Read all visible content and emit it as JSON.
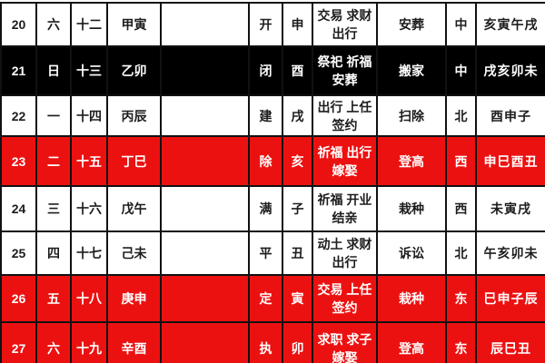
{
  "colors": {
    "row_red": "#ec1111",
    "row_dark": "#000000",
    "row_white": "#ffffff",
    "border": "#111111",
    "text_dark": "#1c1c1c",
    "text_light": "#ffffff"
  },
  "table": {
    "columns": [
      {
        "key": "day",
        "name": "day-number-cell"
      },
      {
        "key": "week",
        "name": "weekday-cell"
      },
      {
        "key": "lunar",
        "name": "lunar-date-cell"
      },
      {
        "key": "ganzhi",
        "name": "ganzhi-day-cell"
      },
      {
        "key": "festival",
        "name": "festival-cell"
      },
      {
        "key": "jianchu",
        "name": "jianchu-cell"
      },
      {
        "key": "zodiac",
        "name": "zodiac-hour-cell"
      },
      {
        "key": "yi",
        "name": "auspicious-activities-cell"
      },
      {
        "key": "activity",
        "name": "recommended-activity-cell"
      },
      {
        "key": "dir",
        "name": "lucky-direction-cell"
      },
      {
        "key": "hours",
        "name": "lucky-hours-cell"
      }
    ],
    "rows": [
      {
        "day": "20",
        "week": "六",
        "lunar": "十二",
        "ganzhi": "甲寅",
        "festival": "",
        "jianchu": "开",
        "zodiac": "申",
        "yi": "交易 求财\n出行",
        "activity": "安葬",
        "dir": "中",
        "hours": "亥寅午戌",
        "style": "white"
      },
      {
        "day": "21",
        "week": "日",
        "lunar": "十三",
        "ganzhi": "乙卯",
        "festival": "",
        "jianchu": "闭",
        "zodiac": "酉",
        "yi": "祭祀 祈福\n安葬",
        "activity": "搬家",
        "dir": "中",
        "hours": "戌亥卯未",
        "style": "dark"
      },
      {
        "day": "22",
        "week": "一",
        "lunar": "十四",
        "ganzhi": "丙辰",
        "festival": "",
        "jianchu": "建",
        "zodiac": "戌",
        "yi": "出行 上任\n签约",
        "activity": "扫除",
        "dir": "北",
        "hours": "酉申子",
        "style": "white"
      },
      {
        "day": "23",
        "week": "二",
        "lunar": "十五",
        "ganzhi": "丁巳",
        "festival": "",
        "jianchu": "除",
        "zodiac": "亥",
        "yi": "祈福 出行\n嫁娶",
        "activity": "登高",
        "dir": "西",
        "hours": "申巳酉丑",
        "style": "red"
      },
      {
        "day": "24",
        "week": "三",
        "lunar": "十六",
        "ganzhi": "戊午",
        "festival": "",
        "jianchu": "满",
        "zodiac": "子",
        "yi": "祈福 开业\n结亲",
        "activity": "栽种",
        "dir": "西",
        "hours": "未寅戌",
        "style": "white"
      },
      {
        "day": "25",
        "week": "四",
        "lunar": "十七",
        "ganzhi": "己未",
        "festival": "",
        "jianchu": "平",
        "zodiac": "丑",
        "yi": "动土 求财\n出行",
        "activity": "诉讼",
        "dir": "北",
        "hours": "午亥卯未",
        "style": "white"
      },
      {
        "day": "26",
        "week": "五",
        "lunar": "十八",
        "ganzhi": "庚申",
        "festival": "",
        "jianchu": "定",
        "zodiac": "寅",
        "yi": "交易 上任\n签约",
        "activity": "栽种",
        "dir": "东",
        "hours": "巳申子辰",
        "style": "red"
      },
      {
        "day": "27",
        "week": "六",
        "lunar": "十九",
        "ganzhi": "辛酉",
        "festival": "",
        "jianchu": "执",
        "zodiac": "卯",
        "yi": "求职 求子\n嫁娶",
        "activity": "登高",
        "dir": "东",
        "hours": "辰巳丑",
        "style": "red"
      }
    ]
  }
}
